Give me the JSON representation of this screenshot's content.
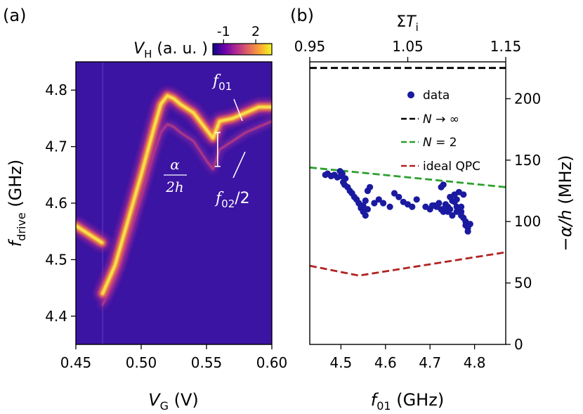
{
  "chart_data": [
    {
      "panel": "(a)",
      "type": "heatmap",
      "xlabel_sym": "V",
      "xlabel_sub": "G",
      "xlabel_unit": " (V)",
      "ylabel_sym": "f",
      "ylabel_sub": "drive",
      "ylabel_unit": " (GHz)",
      "xlim": [
        0.45,
        0.6
      ],
      "ylim": [
        4.35,
        4.85
      ],
      "xticks": [
        "0.45",
        "0.50",
        "0.55",
        "0.60"
      ],
      "yticks": [
        "4.4",
        "4.5",
        "4.6",
        "4.7",
        "4.8"
      ],
      "colorbar": {
        "label_sym": "V",
        "label_sub": "H",
        "label_unit": " (a. u. )",
        "ticks": [
          "-1",
          "2"
        ],
        "range": [
          -2,
          3.5
        ],
        "colors": [
          "#0d0887",
          "#6a00a8",
          "#b12a90",
          "#e16462",
          "#fca636",
          "#f0f921"
        ]
      },
      "background_color": "#3b14a3",
      "discontinuity_x": 0.4705,
      "f01_curve": {
        "x": [
          0.45,
          0.46,
          0.47,
          0.4705,
          0.48,
          0.49,
          0.5,
          0.51,
          0.515,
          0.52,
          0.525,
          0.53,
          0.54,
          0.55,
          0.555,
          0.56,
          0.57,
          0.58,
          0.59,
          0.6
        ],
        "y": [
          4.56,
          4.545,
          4.53,
          4.44,
          4.49,
          4.57,
          4.65,
          4.735,
          4.775,
          4.79,
          4.785,
          4.775,
          4.76,
          4.73,
          4.715,
          4.745,
          4.75,
          4.76,
          4.77,
          4.77
        ]
      },
      "f02_half_curve": {
        "x": [
          0.4705,
          0.48,
          0.49,
          0.5,
          0.51,
          0.515,
          0.52,
          0.525,
          0.53,
          0.54,
          0.55,
          0.555,
          0.56,
          0.57,
          0.58,
          0.59,
          0.6
        ],
        "y": [
          4.42,
          4.465,
          4.535,
          4.61,
          4.69,
          4.725,
          4.74,
          4.735,
          4.725,
          4.71,
          4.675,
          4.66,
          4.695,
          4.71,
          4.725,
          4.735,
          4.745
        ]
      },
      "annotations": {
        "f01_label_sym": "f",
        "f01_label_sub": "01",
        "f02_label_sym": "f",
        "f02_label_sub": "02",
        "f02_label_rest": "/2",
        "alpha_numerator": "α",
        "alpha_denominator": "2h",
        "alpha_bar_x": 0.5585,
        "alpha_bar_y": [
          4.665,
          4.725
        ]
      }
    },
    {
      "panel": "(b)",
      "type": "scatter",
      "xlabel_sym": "f",
      "xlabel_sub": "01",
      "xlabel_unit": " (GHz)",
      "top_xlabel_pre": "Σ",
      "top_xlabel_sym": "T",
      "top_xlabel_sub": "i",
      "ylabel_pre": "−",
      "ylabel_sym": "α/h",
      "ylabel_unit": " (MHz)",
      "xlim": [
        4.43,
        4.87
      ],
      "ylim": [
        0,
        230
      ],
      "xticks": [
        "4.5",
        "4.6",
        "4.7",
        "4.8"
      ],
      "yticks": [
        "0",
        "50",
        "100",
        "150",
        "200"
      ],
      "top_xlim": [
        0.95,
        1.15
      ],
      "top_xticks": [
        "0.95",
        "1.05",
        "1.15"
      ],
      "series": [
        {
          "name": "data",
          "kind": "points",
          "color": "#1a1aa0",
          "x": [
            4.465,
            4.47,
            4.478,
            4.485,
            4.492,
            4.498,
            4.503,
            4.508,
            4.5,
            4.505,
            4.51,
            4.515,
            4.52,
            4.525,
            4.53,
            4.535,
            4.54,
            4.545,
            4.55,
            4.555,
            4.56,
            4.555,
            4.55,
            4.545,
            4.56,
            4.565,
            4.575,
            4.585,
            4.595,
            4.61,
            4.62,
            4.63,
            4.64,
            4.65,
            4.66,
            4.67,
            4.69,
            4.7,
            4.71,
            4.72,
            4.725,
            4.73,
            4.735,
            4.73,
            4.74,
            4.745,
            4.75,
            4.755,
            4.76,
            4.76,
            4.765,
            4.77,
            4.77,
            4.775,
            4.78,
            4.78,
            4.785,
            4.785,
            4.79,
            4.775,
            4.765,
            4.755,
            4.745,
            4.74,
            4.75,
            4.76,
            4.77,
            4.735,
            4.725,
            4.715,
            4.705
          ],
          "y": [
            138,
            139,
            137,
            138,
            136,
            141,
            139,
            130,
            137,
            132,
            135,
            128,
            125,
            123,
            120,
            118,
            115,
            112,
            108,
            105,
            110,
            117,
            113,
            111,
            125,
            128,
            115,
            118,
            115,
            112,
            123,
            120,
            116,
            114,
            112,
            118,
            112,
            110,
            113,
            115,
            128,
            130,
            112,
            108,
            112,
            120,
            117,
            122,
            118,
            112,
            110,
            108,
            105,
            103,
            100,
            97,
            95,
            92,
            98,
            122,
            124,
            116,
            110,
            108,
            105,
            108,
            112,
            114,
            110,
            112,
            113
          ]
        },
        {
          "name": "N → ∞",
          "kind": "dashed-line",
          "color": "#000000",
          "x": [
            4.43,
            4.87
          ],
          "y": [
            225,
            225
          ]
        },
        {
          "name": "N = 2",
          "kind": "dashed-line",
          "color": "#2ca02c",
          "x": [
            4.43,
            4.87
          ],
          "y": [
            144,
            128
          ]
        },
        {
          "name": "ideal QPC",
          "kind": "dashed-line",
          "color": "#b22222",
          "x": [
            4.43,
            4.54,
            4.87
          ],
          "y": [
            64,
            56,
            75
          ]
        }
      ],
      "legend_position": "upper-right",
      "legend": [
        {
          "label": "data",
          "kind": "points",
          "color": "#1a1aa0"
        },
        {
          "label_pre": "",
          "label_sym": "N",
          "label_rest": " → ∞",
          "kind": "dashed-line",
          "color": "#000000"
        },
        {
          "label_pre": "",
          "label_sym": "N",
          "label_rest": " = 2",
          "kind": "dashed-line",
          "color": "#2ca02c"
        },
        {
          "label": "ideal QPC",
          "kind": "dashed-line",
          "color": "#b22222"
        }
      ]
    }
  ]
}
